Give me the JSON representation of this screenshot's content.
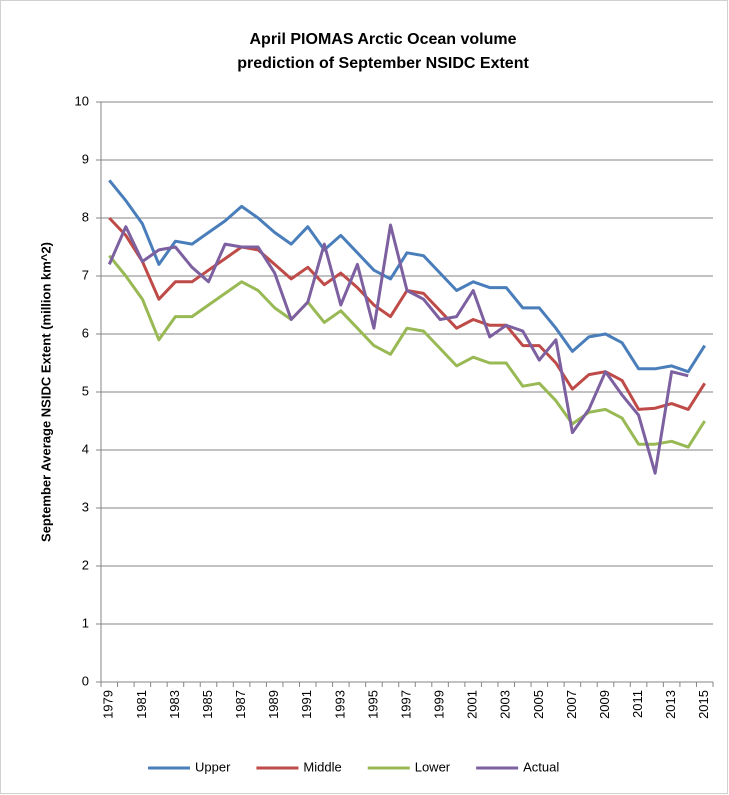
{
  "chart_data": {
    "type": "line",
    "title": [
      "April PIOMAS Arctic Ocean volume",
      "prediction of September NSIDC Extent"
    ],
    "y_label": "September Average NSIDC Extent (million  km^2)",
    "categories": [
      "1979",
      null,
      "1981",
      null,
      "1983",
      null,
      "1985",
      null,
      "1987",
      null,
      "1989",
      null,
      "1991",
      null,
      "1993",
      null,
      "1995",
      null,
      "1997",
      null,
      "1999",
      null,
      "2001",
      null,
      "2003",
      null,
      "2005",
      null,
      "2007",
      null,
      "2009",
      null,
      "2011",
      null,
      "2013",
      null,
      "2015"
    ],
    "series": [
      {
        "name": "Upper",
        "color": "#4a7ebb",
        "values": [
          8.65,
          8.3,
          7.9,
          7.2,
          7.6,
          7.55,
          7.75,
          7.95,
          8.2,
          8.0,
          7.75,
          7.55,
          7.85,
          7.45,
          7.7,
          7.4,
          7.1,
          6.95,
          7.4,
          7.35,
          7.05,
          6.75,
          6.9,
          6.8,
          6.8,
          6.45,
          6.45,
          6.1,
          5.7,
          5.95,
          6.0,
          5.85,
          5.4,
          5.4,
          5.45,
          5.35,
          5.8
        ]
      },
      {
        "name": "Middle",
        "color": "#be4b48",
        "values": [
          8.0,
          7.7,
          7.25,
          6.6,
          6.9,
          6.9,
          7.1,
          7.3,
          7.5,
          7.45,
          7.2,
          6.95,
          7.15,
          6.85,
          7.05,
          6.8,
          6.5,
          6.3,
          6.75,
          6.7,
          6.4,
          6.1,
          6.25,
          6.15,
          6.15,
          5.8,
          5.8,
          5.5,
          5.05,
          5.3,
          5.35,
          5.2,
          4.7,
          4.72,
          4.8,
          4.7,
          5.15
        ]
      },
      {
        "name": "Lower",
        "color": "#98b954",
        "values": [
          7.35,
          7.0,
          6.6,
          5.9,
          6.3,
          6.3,
          6.5,
          6.7,
          6.9,
          6.75,
          6.45,
          6.25,
          6.55,
          6.2,
          6.4,
          6.1,
          5.8,
          5.65,
          6.1,
          6.05,
          5.75,
          5.45,
          5.6,
          5.5,
          5.5,
          5.1,
          5.15,
          4.85,
          4.45,
          4.65,
          4.7,
          4.55,
          4.1,
          4.1,
          4.15,
          4.05,
          4.5
        ]
      },
      {
        "name": "Actual",
        "color": "#7d60a0",
        "values": [
          7.2,
          7.85,
          7.25,
          7.45,
          7.5,
          7.15,
          6.9,
          7.55,
          7.5,
          7.5,
          7.05,
          6.25,
          6.55,
          7.55,
          6.5,
          7.2,
          6.1,
          7.88,
          6.75,
          6.6,
          6.25,
          6.3,
          6.75,
          5.95,
          6.15,
          6.05,
          5.55,
          5.9,
          4.3,
          4.7,
          5.35,
          4.95,
          4.6,
          3.6,
          5.35,
          5.28,
          null
        ]
      }
    ],
    "ylim": [
      0,
      10
    ],
    "yticks": [
      0,
      1,
      2,
      3,
      4,
      5,
      6,
      7,
      8,
      9,
      10
    ],
    "grid": true,
    "legend": "bottom"
  }
}
